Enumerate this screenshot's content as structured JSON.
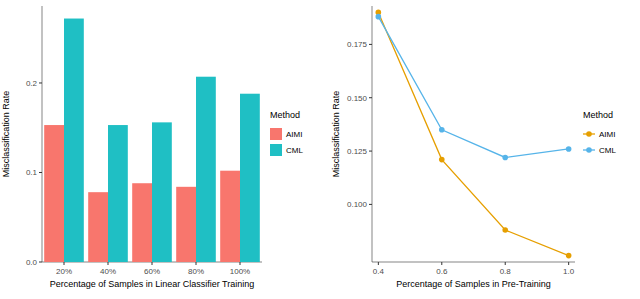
{
  "chart_data": [
    {
      "type": "bar",
      "x_label": "Percentage of Samples in Linear Classifier Training",
      "y_label": "Misclassification Rate",
      "legend_title": "Method",
      "legend": "right",
      "grid": false,
      "categories": [
        "20%",
        "40%",
        "60%",
        "80%",
        "100%"
      ],
      "series": [
        {
          "name": "AIMI",
          "color": "#F8766D",
          "values": [
            0.153,
            0.078,
            0.088,
            0.084,
            0.102
          ]
        },
        {
          "name": "CML",
          "color": "#1FBFC4",
          "values": [
            0.272,
            0.153,
            0.156,
            0.207,
            0.188
          ]
        }
      ],
      "ylim": [
        0,
        0.286
      ],
      "yticks": [
        {
          "value": 0,
          "label": "0.0"
        },
        {
          "value": 0.1,
          "label": "0.1"
        },
        {
          "value": 0.2,
          "label": "0.2"
        }
      ]
    },
    {
      "type": "line",
      "x_label": "Percentage of Samples in Pre-Training",
      "y_label": "Misclassification Rate",
      "legend_title": "Method",
      "legend": "right",
      "grid": false,
      "marker": "circle",
      "x": [
        0.4,
        0.6,
        0.8,
        1.0
      ],
      "series": [
        {
          "name": "AIMI",
          "color": "#E69F00",
          "values": [
            0.19,
            0.121,
            0.088,
            0.076
          ]
        },
        {
          "name": "CML",
          "color": "#56B4E9",
          "values": [
            0.188,
            0.135,
            0.122,
            0.126
          ]
        }
      ],
      "xlim": [
        0.38,
        1.02
      ],
      "xticks": [
        {
          "value": 0.4,
          "label": "0.4"
        },
        {
          "value": 0.6,
          "label": "0.6"
        },
        {
          "value": 0.8,
          "label": "0.8"
        },
        {
          "value": 1.0,
          "label": "1.0"
        }
      ],
      "ylim": [
        0.073,
        0.193
      ],
      "yticks": [
        {
          "value": 0.1,
          "label": "0.100"
        },
        {
          "value": 0.125,
          "label": "0.125"
        },
        {
          "value": 0.15,
          "label": "0.150"
        },
        {
          "value": 0.175,
          "label": "0.175"
        }
      ]
    }
  ]
}
